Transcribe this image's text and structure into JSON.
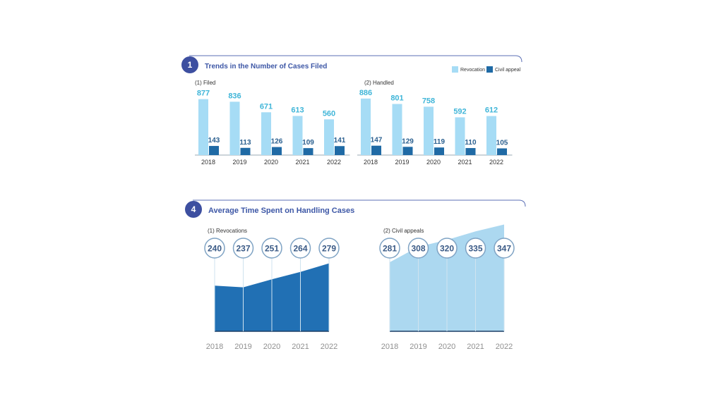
{
  "sections": [
    {
      "number": "1",
      "title": "Trends in the Number of Cases Filed"
    },
    {
      "number": "4",
      "title": "Average Time Spent on Handling Cases"
    }
  ],
  "legend": {
    "revocation": "Revocation",
    "civil_appeal": "Civil appeal"
  },
  "colors": {
    "light_bar": "#a6dcf5",
    "dark_bar": "#1f6aa5",
    "badge": "#3d4fa0",
    "area_dark": "#2170b4",
    "area_light": "#acd8f0"
  },
  "chart_data": [
    {
      "type": "bar",
      "subtitle": "(1) Filed",
      "categories": [
        "2018",
        "2019",
        "2020",
        "2021",
        "2022"
      ],
      "series": [
        {
          "name": "Revocation",
          "values": [
            877,
            836,
            671,
            613,
            560
          ]
        },
        {
          "name": "Civil appeal",
          "values": [
            143,
            113,
            126,
            109,
            141
          ]
        }
      ]
    },
    {
      "type": "bar",
      "subtitle": "(2) Handled",
      "categories": [
        "2018",
        "2019",
        "2020",
        "2021",
        "2022"
      ],
      "series": [
        {
          "name": "Revocation",
          "values": [
            886,
            801,
            758,
            592,
            612
          ]
        },
        {
          "name": "Civil appeal",
          "values": [
            147,
            129,
            119,
            110,
            105
          ]
        }
      ]
    },
    {
      "type": "area",
      "subtitle": "(1) Revocations",
      "x": [
        "2018",
        "2019",
        "2020",
        "2021",
        "2022"
      ],
      "values": [
        240,
        237,
        251,
        264,
        279
      ]
    },
    {
      "type": "area",
      "subtitle": "(2) Civil appeals",
      "x": [
        "2018",
        "2019",
        "2020",
        "2021",
        "2022"
      ],
      "values": [
        281,
        308,
        320,
        335,
        347
      ]
    }
  ]
}
